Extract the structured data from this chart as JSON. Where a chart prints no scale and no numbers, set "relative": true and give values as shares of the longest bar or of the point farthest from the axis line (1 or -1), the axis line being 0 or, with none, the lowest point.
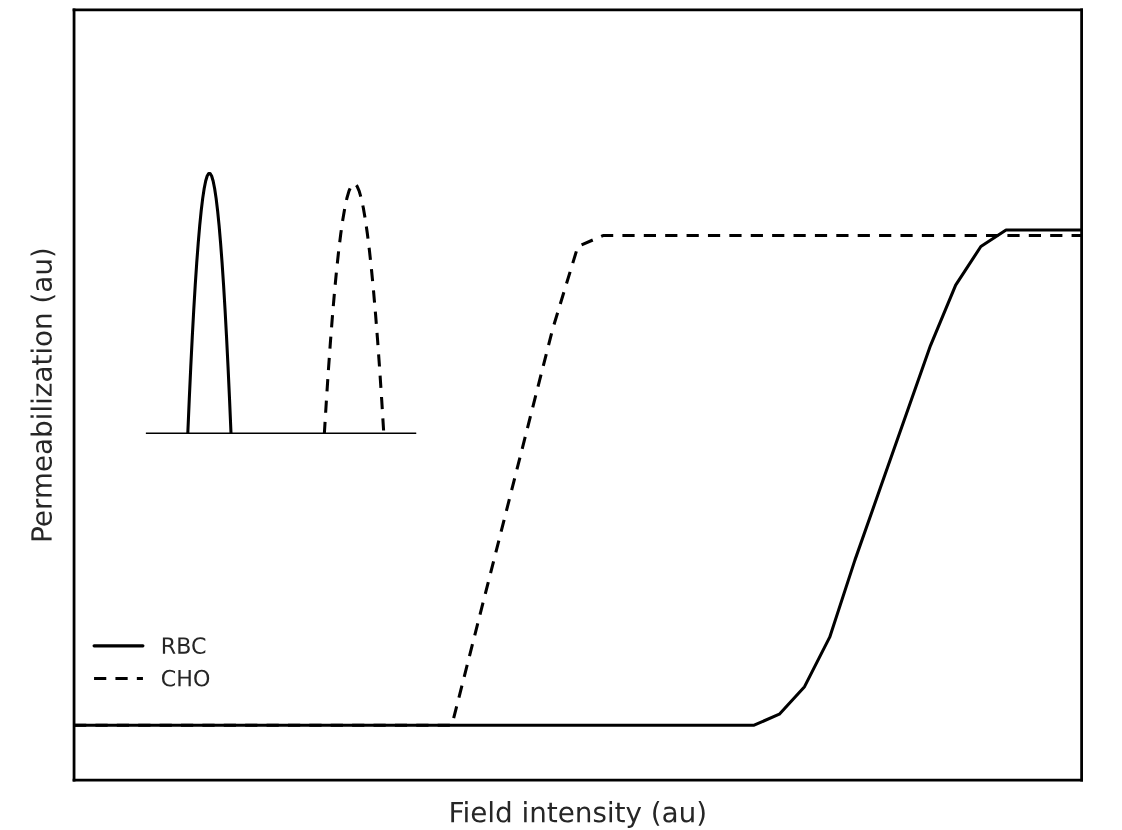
{
  "chart_data": {
    "type": "line",
    "relative": true,
    "xlabel": "Field intensity (au)",
    "ylabel": "Permeabilization (au)",
    "legend": "bottom left",
    "marker": "none",
    "categories": [
      null,
      null,
      null,
      null,
      null,
      null,
      null,
      null,
      null,
      null,
      null,
      null,
      null,
      null,
      null,
      null,
      null,
      null,
      null,
      null,
      null,
      null,
      null,
      null,
      null,
      null,
      null,
      null,
      null,
      null,
      null,
      null,
      null,
      null,
      null,
      null,
      null,
      null,
      null,
      null,
      null
    ],
    "series": [
      {
        "name": "RBC",
        "color": "#000000",
        "line_style": "solid",
        "values": [
          0.1,
          0.1,
          0.1,
          0.1,
          0.1,
          0.1,
          0.1,
          0.1,
          0.1,
          0.1,
          0.1,
          0.1,
          0.1,
          0.1,
          0.1,
          0.1,
          0.1,
          0.1,
          0.1,
          0.1,
          0.1,
          0.1,
          0.1,
          0.1,
          0.1,
          0.1,
          0.1,
          0.1,
          0.12,
          0.17,
          0.26,
          0.4,
          0.53,
          0.66,
          0.79,
          0.9,
          0.97,
          1.0,
          1.0,
          1.0,
          1.0
        ]
      },
      {
        "name": "CHO",
        "color": "#000000",
        "line_style": "dashed",
        "values": [
          0.1,
          0.1,
          0.1,
          0.1,
          0.1,
          0.1,
          0.1,
          0.1,
          0.1,
          0.1,
          0.1,
          0.1,
          0.1,
          0.1,
          0.1,
          0.1,
          0.28,
          0.46,
          0.64,
          0.82,
          0.97,
          0.99,
          0.99,
          0.99,
          0.99,
          0.99,
          0.99,
          0.99,
          0.99,
          0.99,
          0.99,
          0.99,
          0.99,
          0.99,
          0.99,
          0.99,
          0.99,
          0.99,
          0.99,
          0.99,
          0.99
        ]
      }
    ]
  }
}
